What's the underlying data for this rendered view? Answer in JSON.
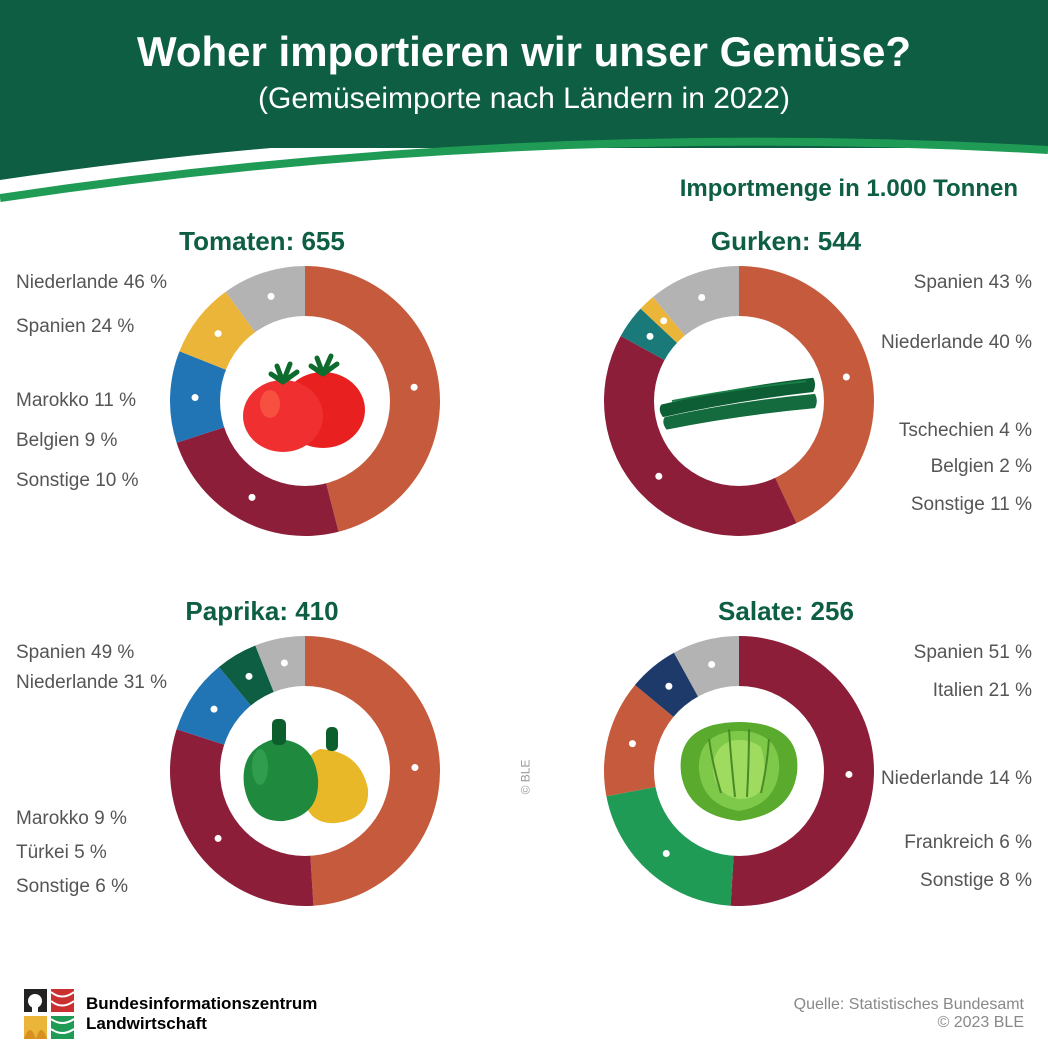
{
  "header": {
    "title": "Woher importieren wir unser Gemüse?",
    "subtitle": "(Gemüseimporte nach Ländern in 2022)",
    "unit": "Importmenge in 1.000 Tonnen"
  },
  "palette": {
    "green_dark": "#0d5e42",
    "green_bright": "#1f9b55"
  },
  "charts": [
    {
      "name": "Tomaten",
      "total": "655",
      "side": "left",
      "labelOffsets": [
        0,
        44,
        118,
        158,
        198
      ],
      "slices": [
        {
          "label": "Niederlande 46 %",
          "pct": 46,
          "color": "#c55a3c"
        },
        {
          "label": "Spanien 24 %",
          "pct": 24,
          "color": "#8c1e3a"
        },
        {
          "label": "Marokko 11 %",
          "pct": 11,
          "color": "#2175b5"
        },
        {
          "label": "Belgien 9 %",
          "pct": 9,
          "color": "#ebb53a"
        },
        {
          "label": "Sonstige 10 %",
          "pct": 10,
          "color": "#b3b3b3"
        }
      ],
      "icon": "tomato"
    },
    {
      "name": "Gurken",
      "total": "544",
      "side": "right",
      "labelOffsets": [
        0,
        60,
        148,
        184,
        222
      ],
      "slices": [
        {
          "label": "Spanien 43 %",
          "pct": 43,
          "color": "#c55a3c"
        },
        {
          "label": "Niederlande 40 %",
          "pct": 40,
          "color": "#8c1e3a"
        },
        {
          "label": "Tschechien 4 %",
          "pct": 4,
          "color": "#1a7a7a"
        },
        {
          "label": "Belgien 2 %",
          "pct": 2,
          "color": "#ebb53a"
        },
        {
          "label": "Sonstige 11 %",
          "pct": 11,
          "color": "#b3b3b3"
        }
      ],
      "icon": "cucumber"
    },
    {
      "name": "Paprika",
      "total": "410",
      "side": "left",
      "labelOffsets": [
        0,
        30,
        166,
        200,
        234
      ],
      "slices": [
        {
          "label": "Spanien 49 %",
          "pct": 49,
          "color": "#c55a3c"
        },
        {
          "label": "Niederlande 31 %",
          "pct": 31,
          "color": "#8c1e3a"
        },
        {
          "label": "Marokko 9 %",
          "pct": 9,
          "color": "#2175b5"
        },
        {
          "label": "Türkei 5 %",
          "pct": 5,
          "color": "#0d5e42"
        },
        {
          "label": "Sonstige 6 %",
          "pct": 6,
          "color": "#b3b3b3"
        }
      ],
      "icon": "pepper"
    },
    {
      "name": "Salate",
      "total": "256",
      "side": "right",
      "labelOffsets": [
        0,
        38,
        126,
        190,
        228
      ],
      "slices": [
        {
          "label": "Spanien 51 %",
          "pct": 51,
          "color": "#8c1e3a"
        },
        {
          "label": "Italien 21 %",
          "pct": 21,
          "color": "#1f9b55"
        },
        {
          "label": "Niederlande 14 %",
          "pct": 14,
          "color": "#c55a3c"
        },
        {
          "label": "Frankreich 6 %",
          "pct": 6,
          "color": "#1e3a6b"
        },
        {
          "label": "Sonstige 8 %",
          "pct": 8,
          "color": "#b3b3b3"
        }
      ],
      "icon": "lettuce"
    }
  ],
  "footer": {
    "org1": "Bundesinformationszentrum",
    "org2": "Landwirtschaft",
    "source": "Quelle: Statistisches Bundesamt",
    "copyright": "© 2023 BLE"
  },
  "watermark": "© BLE"
}
